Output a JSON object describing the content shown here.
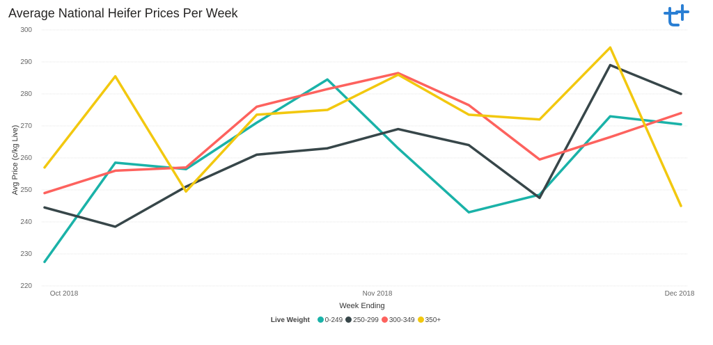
{
  "chart_data": {
    "type": "line",
    "title": "Average National Heifer Prices Per Week",
    "xlabel": "Week Ending",
    "ylabel": "Avg Price (c/kg Live)",
    "ylim": [
      220,
      300
    ],
    "yticks": [
      220,
      230,
      240,
      250,
      260,
      270,
      280,
      290,
      300
    ],
    "x_tick_labels": [
      "Oct 2018",
      "Nov 2018",
      "Dec 2018"
    ],
    "grid": true,
    "legend_title": "Live Weight",
    "legend_position": "bottom",
    "series": [
      {
        "name": "0-249",
        "color": "#1ab2a8",
        "values": [
          227.5,
          258.5,
          256.5,
          271,
          284.5,
          263,
          243,
          248.5,
          273,
          270.5
        ]
      },
      {
        "name": "250-299",
        "color": "#374649",
        "values": [
          244.5,
          238.5,
          251,
          261,
          263,
          269,
          264,
          247.5,
          289,
          280
        ]
      },
      {
        "name": "300-349",
        "color": "#fd625e",
        "values": [
          249,
          256,
          257,
          276,
          281.5,
          286.5,
          276.5,
          259.5,
          266.5,
          274
        ]
      },
      {
        "name": "350+",
        "color": "#f2c80f",
        "values": [
          257,
          285.5,
          249.5,
          273.5,
          275,
          286,
          273.5,
          272,
          294.5,
          245
        ]
      }
    ]
  },
  "logo": {
    "name": "brand-logo"
  }
}
